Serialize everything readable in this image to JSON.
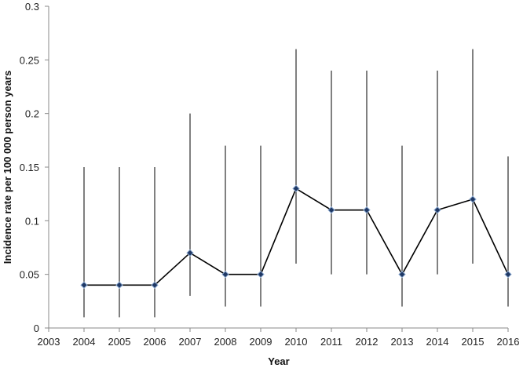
{
  "chart_data": {
    "type": "line",
    "title": "",
    "xlabel": "Year",
    "ylabel": "Incidence rate per 100 000 person years",
    "xlim": [
      2003,
      2016
    ],
    "ylim": [
      0,
      0.3
    ],
    "x_ticks": [
      "2003",
      "2004",
      "2005",
      "2006",
      "2007",
      "2008",
      "2009",
      "2010",
      "2011",
      "2012",
      "2013",
      "2014",
      "2015",
      "2016"
    ],
    "y_ticks": [
      "0",
      "0.05",
      "0.1",
      "0.15",
      "0.2",
      "0.25",
      "0.3"
    ],
    "grid": false,
    "legend": "none",
    "series": [
      {
        "x": [
          2004,
          2005,
          2006,
          2007,
          2008,
          2009,
          2010,
          2011,
          2012,
          2013,
          2014,
          2015,
          2016
        ],
        "values": [
          0.04,
          0.04,
          0.04,
          0.07,
          0.05,
          0.05,
          0.13,
          0.11,
          0.11,
          0.05,
          0.11,
          0.12,
          0.05
        ],
        "lower": [
          0.01,
          0.01,
          0.01,
          0.03,
          0.02,
          0.02,
          0.06,
          0.05,
          0.05,
          0.02,
          0.05,
          0.06,
          0.02
        ],
        "upper": [
          0.15,
          0.15,
          0.15,
          0.2,
          0.17,
          0.17,
          0.26,
          0.24,
          0.24,
          0.17,
          0.24,
          0.26,
          0.16
        ]
      }
    ],
    "colors": {
      "line": "#000000",
      "marker_fill": "#1f3864",
      "marker_stroke": "#8aa8d0",
      "axis": "#888888"
    }
  }
}
